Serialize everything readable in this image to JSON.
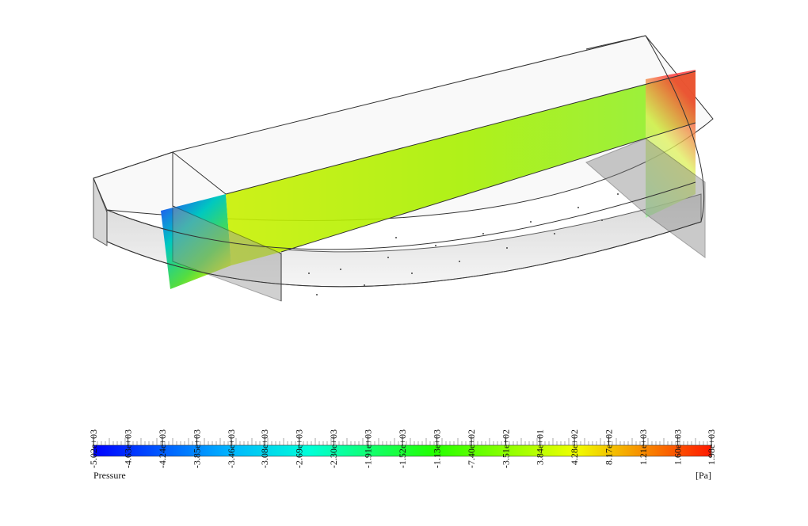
{
  "colorbar": {
    "title": "Pressure",
    "unit": "[Pa]",
    "lim": [
      -5020,
      1980
    ],
    "ticks": [
      {
        "value": -5020,
        "label": "-5.02e+03"
      },
      {
        "value": -4630,
        "label": "-4.63e+03"
      },
      {
        "value": -4240,
        "label": "-4.24e+03"
      },
      {
        "value": -3850,
        "label": "-3.85e+03"
      },
      {
        "value": -3460,
        "label": "-3.46e+03"
      },
      {
        "value": -3080,
        "label": "-3.08e+03"
      },
      {
        "value": -2690,
        "label": "-2.69e+03"
      },
      {
        "value": -2300,
        "label": "-2.30e+03"
      },
      {
        "value": -1910,
        "label": "-1.91e+03"
      },
      {
        "value": -1520,
        "label": "-1.52e+03"
      },
      {
        "value": -1130,
        "label": "-1.13e+03"
      },
      {
        "value": -740,
        "label": "-7.40e+02"
      },
      {
        "value": -351,
        "label": "-3.51e+02"
      },
      {
        "value": 38.4,
        "label": "3.84e+01"
      },
      {
        "value": 428,
        "label": "4.28e+02"
      },
      {
        "value": 817,
        "label": "8.17e+02"
      },
      {
        "value": 1210,
        "label": "1.21e+03"
      },
      {
        "value": 1600,
        "label": "1.60e+03"
      },
      {
        "value": 1980,
        "label": "1.98e+03"
      }
    ]
  }
}
